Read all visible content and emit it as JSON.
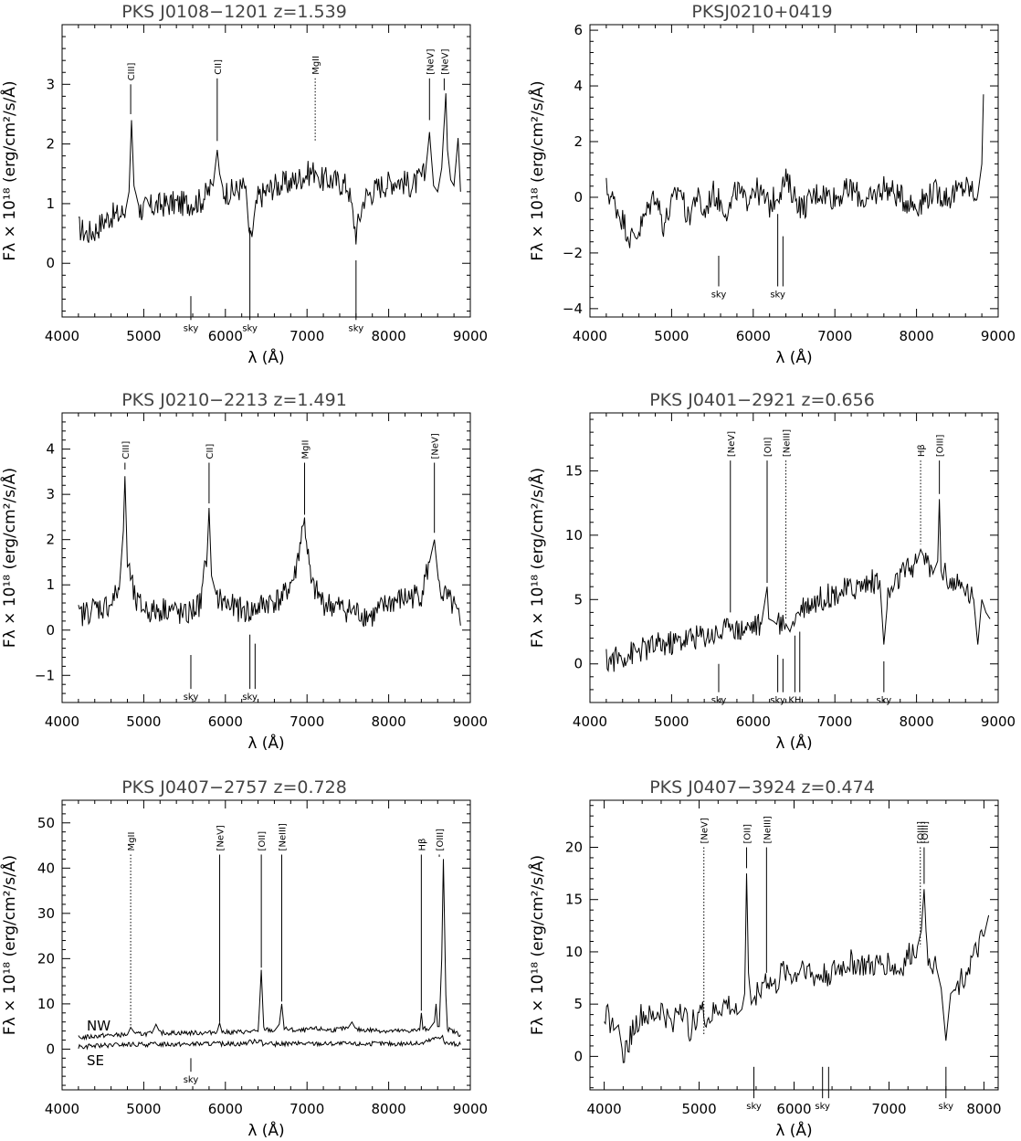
{
  "chart_data": [
    {
      "type": "line",
      "title": "PKS J0108−1201    z=1.539",
      "xlabel": "λ (Å)",
      "ylabel": "Fλ × 10¹⁸ (erg/cm²/s/Å)",
      "xlim": [
        4000,
        9000
      ],
      "ylim": [
        -0.9,
        4.0
      ],
      "xticks": [
        4000,
        5000,
        6000,
        7000,
        8000,
        9000
      ],
      "yticks": [
        0,
        1,
        2,
        3
      ],
      "series": [
        {
          "x": [
            4200,
            4300,
            4400,
            4500,
            4600,
            4700,
            4780,
            4820,
            4850,
            4880,
            4950,
            5100,
            5300,
            5500,
            5700,
            5850,
            5900,
            5930,
            5980,
            6100,
            6250,
            6300,
            6400,
            6600,
            6800,
            7000,
            7100,
            7150,
            7300,
            7500,
            7600,
            7700,
            7900,
            8100,
            8300,
            8450,
            8500,
            8550,
            8600,
            8650,
            8700,
            8720,
            8760,
            8800,
            8850,
            8880
          ],
          "y": [
            0.6,
            0.5,
            0.55,
            0.7,
            0.8,
            0.8,
            0.9,
            1.2,
            2.4,
            1.3,
            0.9,
            0.95,
            1.0,
            1.0,
            1.05,
            1.3,
            1.9,
            1.5,
            1.2,
            1.2,
            1.3,
            0.3,
            1.1,
            1.3,
            1.35,
            1.5,
            1.55,
            1.4,
            1.4,
            1.3,
            0.5,
            1.1,
            1.3,
            1.4,
            1.3,
            1.5,
            2.2,
            1.3,
            1.2,
            1.6,
            2.85,
            1.9,
            1.4,
            1.3,
            2.1,
            1.2
          ]
        }
      ],
      "lines": [
        {
          "label": "CIII]",
          "x": 4840,
          "top": 3.0,
          "bottom": 2.5,
          "style": "solid"
        },
        {
          "label": "CII]",
          "x": 5900,
          "top": 3.1,
          "bottom": 2.05,
          "style": "solid"
        },
        {
          "label": "MgII",
          "x": 7100,
          "top": 3.1,
          "bottom": 2.05,
          "style": "dotted"
        },
        {
          "label": "[NeV]",
          "x": 8500,
          "top": 3.1,
          "bottom": 2.4,
          "style": "solid"
        },
        {
          "label": "[NeV]",
          "x": 8680,
          "top": 3.1,
          "bottom": 2.9,
          "style": "solid"
        }
      ],
      "sky": [
        {
          "x": 5577,
          "top": -0.55,
          "bottom": -0.95,
          "label": "sky"
        },
        {
          "x": 6300,
          "top": 0.6,
          "bottom": -0.95,
          "label": "sky"
        },
        {
          "x": 7600,
          "top": 0.05,
          "bottom": -0.95,
          "label": "sky"
        }
      ]
    },
    {
      "type": "line",
      "title": "PKSJ0210+0419",
      "xlabel": "λ (Å)",
      "ylabel": "Fλ × 10¹⁸ (erg/cm²/s/Å)",
      "xlim": [
        4000,
        9000
      ],
      "ylim": [
        -4.3,
        6.2
      ],
      "xticks": [
        4000,
        5000,
        6000,
        7000,
        8000,
        9000
      ],
      "yticks": [
        -4,
        -2,
        0,
        2,
        4,
        6
      ],
      "series": [
        {
          "x": [
            4200,
            4300,
            4400,
            4500,
            4600,
            4700,
            4800,
            4900,
            5000,
            5100,
            5200,
            5300,
            5400,
            5500,
            5600,
            5700,
            5800,
            5900,
            6000,
            6200,
            6400,
            6600,
            6800,
            7000,
            7200,
            7400,
            7600,
            7800,
            8000,
            8200,
            8400,
            8600,
            8750,
            8800,
            8820
          ],
          "y": [
            0.3,
            -0.2,
            -0.8,
            -1.5,
            -1.2,
            -0.5,
            0.2,
            -1.0,
            -0.3,
            0.4,
            -0.8,
            0.1,
            -0.6,
            0.2,
            -0.2,
            -0.5,
            0.3,
            -0.2,
            0.4,
            -0.3,
            0.6,
            -0.4,
            0.2,
            0.0,
            0.3,
            -0.2,
            0.4,
            0.0,
            -0.3,
            0.2,
            0.0,
            0.4,
            0.1,
            1.2,
            3.7
          ]
        }
      ],
      "lines": [],
      "sky": [
        {
          "x": 5577,
          "top": -2.1,
          "bottom": -3.2,
          "label": "sky"
        },
        {
          "x": 6300,
          "top": -0.6,
          "bottom": -3.2,
          "label": "sky"
        },
        {
          "x": 6364,
          "top": -1.4,
          "bottom": -3.2,
          "label": ""
        }
      ]
    },
    {
      "type": "line",
      "title": "PKS J0210−2213    z=1.491",
      "xlabel": "λ (Å)",
      "ylabel": "Fλ × 10¹⁸ (erg/cm²/s/Å)",
      "xlim": [
        4000,
        9000
      ],
      "ylim": [
        -1.6,
        4.8
      ],
      "xticks": [
        4000,
        5000,
        6000,
        7000,
        8000,
        9000
      ],
      "yticks": [
        -1,
        0,
        1,
        2,
        3,
        4
      ],
      "series": [
        {
          "x": [
            4200,
            4300,
            4400,
            4500,
            4600,
            4700,
            4750,
            4770,
            4800,
            4900,
            5100,
            5300,
            5500,
            5700,
            5780,
            5800,
            5830,
            5900,
            6100,
            6300,
            6500,
            6700,
            6850,
            6950,
            6970,
            7050,
            7200,
            7400,
            7600,
            7800,
            8000,
            8200,
            8400,
            8500,
            8560,
            8620,
            8800,
            8880
          ],
          "y": [
            0.3,
            0.4,
            0.5,
            0.5,
            0.6,
            0.9,
            2.2,
            3.4,
            1.5,
            0.6,
            0.4,
            0.5,
            0.3,
            0.6,
            1.8,
            2.7,
            1.2,
            0.7,
            0.5,
            0.4,
            0.6,
            0.7,
            1.2,
            2.3,
            2.4,
            1.0,
            0.6,
            0.5,
            0.4,
            0.3,
            0.6,
            0.7,
            0.8,
            1.5,
            2.0,
            0.9,
            0.5,
            0.1
          ]
        }
      ],
      "lines": [
        {
          "label": "CIII]",
          "x": 4770,
          "top": 3.7,
          "bottom": 3.55,
          "style": "solid"
        },
        {
          "label": "CII]",
          "x": 5800,
          "top": 3.7,
          "bottom": 2.8,
          "style": "solid"
        },
        {
          "label": "MgII",
          "x": 6970,
          "top": 3.7,
          "bottom": 2.55,
          "style": "solid"
        },
        {
          "label": "[NeV]",
          "x": 8560,
          "top": 3.7,
          "bottom": 2.15,
          "style": "solid"
        }
      ],
      "sky": [
        {
          "x": 5577,
          "top": -0.55,
          "bottom": -1.3,
          "label": "sky"
        },
        {
          "x": 6300,
          "top": -0.1,
          "bottom": -1.3,
          "label": "sky"
        },
        {
          "x": 6364,
          "top": -0.3,
          "bottom": -1.3,
          "label": ""
        }
      ]
    },
    {
      "type": "line",
      "title": "PKS J0401−2921    z=0.656",
      "xlabel": "λ (Å)",
      "ylabel": "Fλ × 10¹⁸ (erg/cm²/s/Å)",
      "xlim": [
        4000,
        9000
      ],
      "ylim": [
        -3.0,
        19.5
      ],
      "xticks": [
        4000,
        5000,
        6000,
        7000,
        8000,
        9000
      ],
      "yticks": [
        0,
        5,
        10,
        15
      ],
      "series": [
        {
          "x": [
            4200,
            4400,
            4600,
            4800,
            5000,
            5200,
            5400,
            5600,
            5700,
            5720,
            5800,
            6000,
            6100,
            6170,
            6190,
            6250,
            6300,
            6400,
            6450,
            6500,
            6600,
            6800,
            7000,
            7200,
            7400,
            7550,
            7600,
            7650,
            7800,
            8000,
            8050,
            8100,
            8200,
            8260,
            8280,
            8300,
            8400,
            8500,
            8600,
            8700,
            8750,
            8800,
            8850,
            8900
          ],
          "y": [
            0.2,
            0.6,
            1.0,
            1.4,
            1.6,
            2.0,
            2.2,
            2.4,
            2.8,
            3.5,
            2.6,
            3.0,
            3.1,
            6.0,
            3.5,
            3.3,
            3.0,
            3.1,
            2.5,
            3.6,
            4.5,
            5.0,
            5.5,
            5.8,
            6.3,
            6.5,
            1.5,
            5.2,
            6.8,
            7.8,
            8.9,
            8.2,
            7.0,
            8.0,
            12.8,
            7.5,
            6.5,
            6.0,
            5.8,
            5.0,
            1.5,
            5.0,
            4.0,
            3.5
          ]
        }
      ],
      "lines": [
        {
          "label": "[NeV]",
          "x": 5720,
          "top": 15.8,
          "bottom": 4.0,
          "style": "solid"
        },
        {
          "label": "[OII]",
          "x": 6170,
          "top": 15.8,
          "bottom": 6.3,
          "style": "solid"
        },
        {
          "label": "[NeIII]",
          "x": 6400,
          "top": 15.8,
          "bottom": 3.5,
          "style": "dotted"
        },
        {
          "label": "Hβ",
          "x": 8050,
          "top": 15.8,
          "bottom": 9.3,
          "style": "dotted"
        },
        {
          "label": "[OIII]",
          "x": 8280,
          "top": 15.8,
          "bottom": 13.2,
          "style": "solid"
        }
      ],
      "sky": [
        {
          "x": 5577,
          "top": 0.0,
          "bottom": -2.2,
          "label": "sky"
        },
        {
          "x": 6300,
          "top": 0.7,
          "bottom": -2.2,
          "label": "sky"
        },
        {
          "x": 6364,
          "top": 0.4,
          "bottom": -2.2,
          "label": ""
        },
        {
          "x": 6510,
          "top": 2.2,
          "bottom": -2.2,
          "label": "KH"
        },
        {
          "x": 6570,
          "top": 2.5,
          "bottom": -2.2,
          "label": ""
        },
        {
          "x": 7600,
          "top": 0.2,
          "bottom": -2.2,
          "label": "sky"
        }
      ]
    },
    {
      "type": "line",
      "title": "PKS J0407−2757    z=0.728",
      "xlabel": "λ (Å)",
      "ylabel": "Fλ × 10¹⁸ (erg/cm²/s/Å)",
      "xlim": [
        4000,
        9000
      ],
      "ylim": [
        -9.0,
        55.0
      ],
      "xticks": [
        4000,
        5000,
        6000,
        7000,
        8000,
        9000
      ],
      "yticks": [
        0,
        10,
        20,
        30,
        40,
        50
      ],
      "series": [
        {
          "name": "NW",
          "x": [
            4200,
            4500,
            4800,
            4840,
            4900,
            5100,
            5150,
            5200,
            5500,
            5800,
            5900,
            5930,
            5960,
            6200,
            6400,
            6420,
            6440,
            6470,
            6600,
            6660,
            6690,
            6720,
            6900,
            7100,
            7300,
            7500,
            7550,
            7600,
            7800,
            8000,
            8200,
            8380,
            8400,
            8420,
            8500,
            8560,
            8580,
            8600,
            8620,
            8650,
            8670,
            8700,
            8720,
            8800,
            8880
          ],
          "y": [
            2.5,
            3.0,
            3.2,
            4.8,
            3.3,
            3.5,
            5.5,
            3.6,
            3.6,
            3.6,
            4.0,
            5.8,
            3.7,
            3.8,
            3.9,
            10.0,
            17.5,
            4.5,
            4.0,
            5.5,
            10.0,
            4.5,
            4.0,
            4.5,
            4.2,
            4.6,
            6.0,
            4.3,
            4.2,
            4.0,
            4.0,
            4.2,
            8.0,
            4.5,
            4.5,
            6.0,
            10.0,
            5.0,
            5.0,
            20.0,
            42.0,
            12.0,
            4.5,
            3.8,
            3.2
          ]
        },
        {
          "name": "SE",
          "x": [
            4200,
            4500,
            4800,
            5000,
            5200,
            5400,
            5600,
            5800,
            6000,
            6200,
            6440,
            6460,
            6600,
            6800,
            7000,
            7200,
            7400,
            7600,
            7800,
            8000,
            8200,
            8400,
            8660,
            8680,
            8800,
            8880
          ],
          "y": [
            0.5,
            0.8,
            1.0,
            1.0,
            1.1,
            1.1,
            1.1,
            1.2,
            1.2,
            1.2,
            2.0,
            1.2,
            1.1,
            1.2,
            1.2,
            1.2,
            1.2,
            1.1,
            1.2,
            1.2,
            1.2,
            1.2,
            3.0,
            1.3,
            1.2,
            1.0
          ]
        }
      ],
      "lines": [
        {
          "label": "MgII",
          "x": 4840,
          "top": 43.0,
          "bottom": 5.0,
          "style": "dotted"
        },
        {
          "label": "[NeV]",
          "x": 5930,
          "top": 43.0,
          "bottom": 6.0,
          "style": "solid"
        },
        {
          "label": "[OII]",
          "x": 6440,
          "top": 43.0,
          "bottom": 18.0,
          "style": "solid"
        },
        {
          "label": "[NeIII]",
          "x": 6690,
          "top": 43.0,
          "bottom": 10.5,
          "style": "solid"
        },
        {
          "label": "Hβ",
          "x": 8400,
          "top": 43.0,
          "bottom": 8.5,
          "style": "solid"
        },
        {
          "label": "[OIII]",
          "x": 8620,
          "top": 43.0,
          "bottom": 42.5,
          "style": "solid"
        }
      ],
      "legend": [
        "NW",
        "SE"
      ],
      "sky": [
        {
          "x": 5577,
          "top": -2.0,
          "bottom": -5.0,
          "label": "sky"
        }
      ]
    },
    {
      "type": "line",
      "title": "PKS J0407−3924    z=0.474",
      "xlabel": "λ (Å)",
      "ylabel": "Fλ × 10¹⁸ (erg/cm²/s/Å)",
      "xlim": [
        3850,
        8150
      ],
      "ylim": [
        -3.2,
        24.5
      ],
      "xticks": [
        4000,
        5000,
        6000,
        7000,
        8000
      ],
      "yticks": [
        0,
        5,
        10,
        15,
        20
      ],
      "series": [
        {
          "x": [
            4000,
            4100,
            4150,
            4200,
            4300,
            4400,
            4500,
            4600,
            4700,
            4800,
            4900,
            5000,
            5100,
            5200,
            5300,
            5400,
            5450,
            5480,
            5500,
            5520,
            5550,
            5600,
            5700,
            5800,
            5900,
            6000,
            6100,
            6200,
            6400,
            6600,
            6800,
            7000,
            7100,
            7200,
            7300,
            7340,
            7370,
            7400,
            7500,
            7550,
            7600,
            7650,
            7700,
            7800,
            7900,
            8000,
            8050
          ],
          "y": [
            4.5,
            2.5,
            3.0,
            0.0,
            2.5,
            4.0,
            3.5,
            4.5,
            3.0,
            5.0,
            2.5,
            4.5,
            3.5,
            4.5,
            5.0,
            4.0,
            4.5,
            6.0,
            17.5,
            8.0,
            5.0,
            6.0,
            7.5,
            6.5,
            8.5,
            7.5,
            9.0,
            7.5,
            8.0,
            9.0,
            8.5,
            9.0,
            8.0,
            9.5,
            10.5,
            12.0,
            16.0,
            10.0,
            8.5,
            6.5,
            1.5,
            6.0,
            6.5,
            8.0,
            9.5,
            11.5,
            13.5
          ]
        }
      ],
      "lines": [
        {
          "label": "[NeV]",
          "x": 5050,
          "top": 20.0,
          "bottom": 2.0,
          "style": "dotted"
        },
        {
          "label": "[OII]",
          "x": 5500,
          "top": 20.0,
          "bottom": 18.0,
          "style": "solid"
        },
        {
          "label": "[NeIII]",
          "x": 5710,
          "top": 20.0,
          "bottom": 8.0,
          "style": "solid"
        },
        {
          "label": "[OIII]",
          "x": 7330,
          "top": 20.0,
          "bottom": 10.5,
          "style": "dotted"
        },
        {
          "label": "[OIII]",
          "x": 7370,
          "top": 20.0,
          "bottom": 16.5,
          "style": "solid"
        }
      ],
      "sky": [
        {
          "x": 5577,
          "top": -1.0,
          "bottom": -4.0,
          "label": "sky"
        },
        {
          "x": 6300,
          "top": -1.0,
          "bottom": -4.0,
          "label": "sky"
        },
        {
          "x": 6364,
          "top": -1.0,
          "bottom": -4.0,
          "label": ""
        },
        {
          "x": 7600,
          "top": -1.0,
          "bottom": -4.0,
          "label": "sky"
        }
      ]
    }
  ]
}
